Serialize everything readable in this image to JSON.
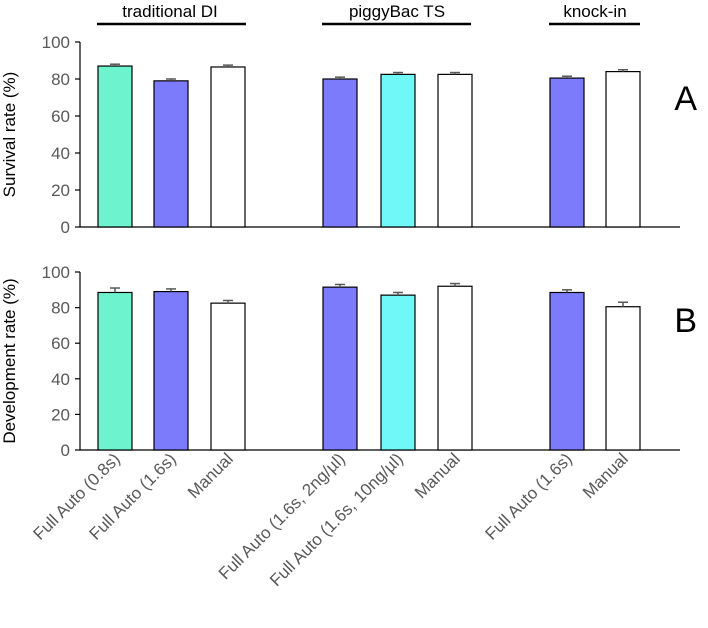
{
  "chart_data": [
    {
      "type": "bar",
      "panel_label": "A",
      "ylabel": "Survival rate (%)",
      "ylim": [
        0,
        100
      ],
      "yticks": [
        0,
        20,
        40,
        60,
        80,
        100
      ],
      "groups": [
        {
          "name": "traditional DI",
          "bars": [
            {
              "category": "Full Auto (0.8s)",
              "value": 87,
              "error": 1.0,
              "color": "#6ef3cf"
            },
            {
              "category": "Full Auto (1.6s)",
              "value": 79,
              "error": 1.0,
              "color": "#7b7bfb"
            },
            {
              "category": "Manual",
              "value": 86.5,
              "error": 1.0,
              "color": "#ffffff"
            }
          ]
        },
        {
          "name": "piggyBac TS",
          "bars": [
            {
              "category": "Full Auto (1.6s, 2ng/µl)",
              "value": 80,
              "error": 1.0,
              "color": "#7b7bfb"
            },
            {
              "category": "Full Auto (1.6s, 10ng/µl)",
              "value": 82.5,
              "error": 1.0,
              "color": "#6ff8f7"
            },
            {
              "category": "Manual",
              "value": 82.5,
              "error": 1.0,
              "color": "#ffffff"
            }
          ]
        },
        {
          "name": "knock-in",
          "bars": [
            {
              "category": "Full Auto (1.6s)",
              "value": 80.5,
              "error": 1.0,
              "color": "#7b7bfb"
            },
            {
              "category": "Manual",
              "value": 84,
              "error": 1.0,
              "color": "#ffffff"
            }
          ]
        }
      ]
    },
    {
      "type": "bar",
      "panel_label": "B",
      "ylabel": "Development rate (%)",
      "ylim": [
        0,
        100
      ],
      "yticks": [
        0,
        20,
        40,
        60,
        80,
        100
      ],
      "groups": [
        {
          "name": "traditional DI",
          "bars": [
            {
              "category": "Full Auto (0.8s)",
              "value": 88.5,
              "error": 2.5,
              "color": "#6ef3cf"
            },
            {
              "category": "Full Auto (1.6s)",
              "value": 89,
              "error": 1.5,
              "color": "#7b7bfb"
            },
            {
              "category": "Manual",
              "value": 82.5,
              "error": 1.5,
              "color": "#ffffff"
            }
          ]
        },
        {
          "name": "piggyBac TS",
          "bars": [
            {
              "category": "Full Auto (1.6s, 2ng/µl)",
              "value": 91.5,
              "error": 1.5,
              "color": "#7b7bfb"
            },
            {
              "category": "Full Auto (1.6s, 10ng/µl)",
              "value": 87,
              "error": 1.5,
              "color": "#6ff8f7"
            },
            {
              "category": "Manual",
              "value": 92,
              "error": 1.5,
              "color": "#ffffff"
            }
          ]
        },
        {
          "name": "knock-in",
          "bars": [
            {
              "category": "Full Auto (1.6s)",
              "value": 88.5,
              "error": 1.5,
              "color": "#7b7bfb"
            },
            {
              "category": "Manual",
              "value": 80.5,
              "error": 2.5,
              "color": "#ffffff"
            }
          ]
        }
      ]
    }
  ],
  "style": {
    "axis_color": "#000000",
    "tick_label_color": "#595959",
    "error_bar_color": "#595959",
    "category_label_color": "#595959"
  }
}
